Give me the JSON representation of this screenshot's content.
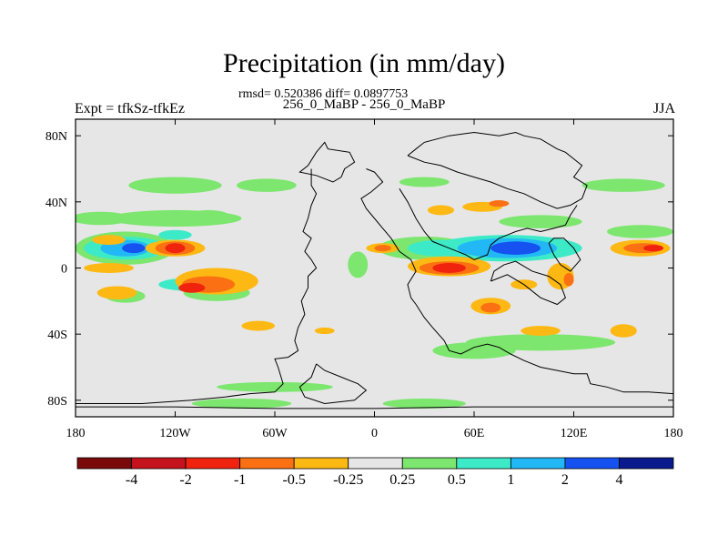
{
  "chart_data": {
    "type": "heatmap",
    "title": "Precipitation (in mm/day)",
    "stats_text": "rmsd= 0.520386 diff= 0.0897753",
    "subtitle": "256_0_MaBP - 256_0_MaBP",
    "left_label": "Expt = tfkSz-tfkEz",
    "right_label": "JJA",
    "x_range": [
      -180,
      180
    ],
    "y_range": [
      -90,
      90
    ],
    "x_ticks": [
      {
        "value": -180,
        "label": "180"
      },
      {
        "value": -120,
        "label": "120W"
      },
      {
        "value": -60,
        "label": "60W"
      },
      {
        "value": 0,
        "label": "0"
      },
      {
        "value": 60,
        "label": "60E"
      },
      {
        "value": 120,
        "label": "120E"
      },
      {
        "value": 180,
        "label": "180"
      }
    ],
    "y_ticks": [
      {
        "value": 80,
        "label": "80N"
      },
      {
        "value": 40,
        "label": "40N"
      },
      {
        "value": 0,
        "label": "0"
      },
      {
        "value": -40,
        "label": "40S"
      },
      {
        "value": -80,
        "label": "80S"
      }
    ],
    "background_color": "#e6e6e6",
    "colorbar": {
      "colors": [
        "#7a0a0a",
        "#c4131c",
        "#f0230e",
        "#fa7012",
        "#fdb813",
        "#e6e6e6",
        "#7ce66e",
        "#3deac8",
        "#22b8f5",
        "#1552f0",
        "#0a1a8c"
      ],
      "labels": [
        "-4",
        "-2",
        "-1",
        "-0.5",
        "-0.25",
        "0.25",
        "0.5",
        "1",
        "2",
        "4"
      ]
    },
    "features": [
      {
        "lon": -165,
        "lat": 30,
        "rlon": 18,
        "rlat": 4,
        "level": 6
      },
      {
        "lon": -120,
        "lat": 30,
        "rlon": 40,
        "rlat": 5,
        "level": 6
      },
      {
        "lon": -100,
        "lat": 32,
        "rlon": 12,
        "rlat": 3,
        "level": 6
      },
      {
        "lon": 100,
        "lat": 28,
        "rlon": 25,
        "rlat": 4,
        "level": 6
      },
      {
        "lon": 160,
        "lat": 22,
        "rlon": 20,
        "rlat": 4,
        "level": 6
      },
      {
        "lon": -150,
        "lat": 12,
        "rlon": 30,
        "rlat": 10,
        "level": 6
      },
      {
        "lon": -150,
        "lat": 12,
        "rlon": 25,
        "rlat": 7,
        "level": 7
      },
      {
        "lon": -150,
        "lat": 12,
        "rlon": 15,
        "rlat": 5,
        "level": 8
      },
      {
        "lon": -145,
        "lat": 12,
        "rlon": 7,
        "rlat": 3,
        "level": 9
      },
      {
        "lon": -120,
        "lat": 20,
        "rlon": 10,
        "rlat": 3,
        "level": 7
      },
      {
        "lon": -110,
        "lat": -10,
        "rlon": 20,
        "rlat": 4,
        "level": 7
      },
      {
        "lon": -95,
        "lat": -15,
        "rlon": 20,
        "rlat": 5,
        "level": 6
      },
      {
        "lon": 30,
        "lat": 12,
        "rlon": 28,
        "rlat": 7,
        "level": 6
      },
      {
        "lon": 40,
        "lat": 12,
        "rlon": 20,
        "rlat": 5,
        "level": 7
      },
      {
        "lon": 80,
        "lat": 12,
        "rlon": 45,
        "rlat": 8,
        "level": 7
      },
      {
        "lon": 80,
        "lat": 12,
        "rlon": 30,
        "rlat": 6,
        "level": 8
      },
      {
        "lon": 85,
        "lat": 12,
        "rlon": 15,
        "rlat": 4,
        "level": 9
      },
      {
        "lon": -10,
        "lat": 2,
        "rlon": 6,
        "rlat": 8,
        "level": 6
      },
      {
        "lon": -120,
        "lat": 50,
        "rlon": 28,
        "rlat": 5,
        "level": 6
      },
      {
        "lon": -65,
        "lat": 50,
        "rlon": 18,
        "rlat": 4,
        "level": 6
      },
      {
        "lon": 150,
        "lat": 50,
        "rlon": 25,
        "rlat": 4,
        "level": 6
      },
      {
        "lon": 30,
        "lat": 52,
        "rlon": 15,
        "rlat": 3,
        "level": 6
      },
      {
        "lon": 100,
        "lat": -45,
        "rlon": 45,
        "rlat": 5,
        "level": 6
      },
      {
        "lon": 60,
        "lat": -50,
        "rlon": 25,
        "rlat": 5,
        "level": 6
      },
      {
        "lon": -150,
        "lat": -17,
        "rlon": 12,
        "rlat": 4,
        "level": 6
      },
      {
        "lon": -60,
        "lat": -72,
        "rlon": 35,
        "rlat": 3,
        "level": 6
      },
      {
        "lon": -80,
        "lat": -82,
        "rlon": 30,
        "rlat": 3,
        "level": 6
      },
      {
        "lon": 30,
        "lat": -82,
        "rlon": 25,
        "rlat": 3,
        "level": 6
      },
      {
        "lon": -120,
        "lat": 12,
        "rlon": 18,
        "rlat": 5,
        "level": 4
      },
      {
        "lon": -120,
        "lat": 12,
        "rlon": 12,
        "rlat": 4,
        "level": 3
      },
      {
        "lon": -120,
        "lat": 12,
        "rlon": 6,
        "rlat": 3,
        "level": 2
      },
      {
        "lon": -95,
        "lat": -8,
        "rlon": 25,
        "rlat": 8,
        "level": 4
      },
      {
        "lon": -100,
        "lat": -10,
        "rlon": 16,
        "rlat": 5,
        "level": 3
      },
      {
        "lon": -110,
        "lat": -12,
        "rlon": 8,
        "rlat": 3,
        "level": 2
      },
      {
        "lon": -160,
        "lat": 0,
        "rlon": 15,
        "rlat": 3,
        "level": 4
      },
      {
        "lon": 45,
        "lat": 1,
        "rlon": 25,
        "rlat": 6,
        "level": 4
      },
      {
        "lon": 45,
        "lat": 0,
        "rlon": 18,
        "rlat": 4,
        "level": 3
      },
      {
        "lon": 45,
        "lat": 0,
        "rlon": 10,
        "rlat": 3,
        "level": 2
      },
      {
        "lon": 5,
        "lat": 12,
        "rlon": 10,
        "rlat": 3,
        "level": 4
      },
      {
        "lon": 5,
        "lat": 12,
        "rlon": 5,
        "rlat": 2,
        "level": 3
      },
      {
        "lon": 70,
        "lat": -23,
        "rlon": 12,
        "rlat": 5,
        "level": 4
      },
      {
        "lon": 70,
        "lat": -24,
        "rlon": 6,
        "rlat": 3,
        "level": 3
      },
      {
        "lon": 65,
        "lat": 37,
        "rlon": 12,
        "rlat": 3,
        "level": 4
      },
      {
        "lon": 75,
        "lat": 39,
        "rlon": 6,
        "rlat": 2,
        "level": 3
      },
      {
        "lon": 160,
        "lat": 12,
        "rlon": 18,
        "rlat": 5,
        "level": 4
      },
      {
        "lon": 162,
        "lat": 12,
        "rlon": 12,
        "rlat": 3,
        "level": 3
      },
      {
        "lon": 168,
        "lat": 12,
        "rlon": 6,
        "rlat": 2,
        "level": 2
      },
      {
        "lon": 112,
        "lat": -5,
        "rlon": 8,
        "rlat": 8,
        "level": 4
      },
      {
        "lon": 117,
        "lat": -7,
        "rlon": 3,
        "rlat": 4,
        "level": 3
      },
      {
        "lon": 90,
        "lat": -10,
        "rlon": 8,
        "rlat": 3,
        "level": 4
      },
      {
        "lon": 40,
        "lat": 35,
        "rlon": 8,
        "rlat": 3,
        "level": 4
      },
      {
        "lon": -160,
        "lat": 17,
        "rlon": 10,
        "rlat": 3,
        "level": 4
      },
      {
        "lon": -155,
        "lat": -15,
        "rlon": 12,
        "rlat": 4,
        "level": 4
      },
      {
        "lon": 150,
        "lat": -38,
        "rlon": 8,
        "rlat": 4,
        "level": 4
      },
      {
        "lon": 100,
        "lat": -38,
        "rlon": 12,
        "rlat": 3,
        "level": 4
      },
      {
        "lon": -30,
        "lat": -38,
        "rlon": 6,
        "rlat": 2,
        "level": 4
      },
      {
        "lon": -70,
        "lat": -35,
        "rlon": 10,
        "rlat": 3,
        "level": 4
      }
    ],
    "coastlines": [
      [
        [
          -20,
          55
        ],
        [
          -18,
          60
        ],
        [
          -12,
          64
        ],
        [
          -15,
          70
        ],
        [
          -28,
          72
        ],
        [
          -30,
          76
        ],
        [
          -35,
          70
        ],
        [
          -40,
          62
        ],
        [
          -45,
          58
        ],
        [
          -35,
          56
        ],
        [
          -25,
          52
        ],
        [
          -20,
          55
        ]
      ],
      [
        [
          -38,
          60
        ],
        [
          -38,
          50
        ],
        [
          -35,
          45
        ],
        [
          -38,
          38
        ],
        [
          -40,
          30
        ],
        [
          -43,
          22
        ],
        [
          -38,
          18
        ],
        [
          -42,
          10
        ],
        [
          -38,
          5
        ],
        [
          -35,
          0
        ],
        [
          -40,
          -5
        ],
        [
          -40,
          -12
        ],
        [
          -44,
          -20
        ],
        [
          -42,
          -28
        ],
        [
          -46,
          -36
        ],
        [
          -48,
          -44
        ],
        [
          -46,
          -50
        ],
        [
          -52,
          -54
        ],
        [
          -60,
          -55
        ],
        [
          -58,
          -60
        ],
        [
          -55,
          -70
        ],
        [
          -60,
          -75
        ],
        [
          -75,
          -76
        ],
        [
          -90,
          -78
        ],
        [
          -110,
          -80
        ],
        [
          -140,
          -82
        ],
        [
          -180,
          -82
        ]
      ],
      [
        [
          -5,
          60
        ],
        [
          0,
          58
        ],
        [
          5,
          52
        ],
        [
          -2,
          46
        ],
        [
          -8,
          42
        ],
        [
          -5,
          36
        ],
        [
          0,
          30
        ]
      ],
      [
        [
          20,
          68
        ],
        [
          25,
          72
        ],
        [
          30,
          76
        ],
        [
          45,
          80
        ],
        [
          60,
          82
        ],
        [
          75,
          80
        ],
        [
          85,
          82
        ],
        [
          90,
          80
        ],
        [
          100,
          78
        ],
        [
          110,
          72
        ],
        [
          115,
          70
        ],
        [
          125,
          62
        ],
        [
          120,
          55
        ],
        [
          128,
          50
        ],
        [
          125,
          42
        ],
        [
          118,
          38
        ],
        [
          110,
          36
        ],
        [
          100,
          40
        ],
        [
          90,
          45
        ],
        [
          80,
          48
        ],
        [
          70,
          52
        ],
        [
          60,
          55
        ],
        [
          50,
          58
        ],
        [
          40,
          62
        ],
        [
          30,
          64
        ],
        [
          20,
          68
        ]
      ],
      [
        [
          15,
          48
        ],
        [
          20,
          40
        ],
        [
          25,
          30
        ],
        [
          30,
          22
        ],
        [
          35,
          16
        ],
        [
          45,
          12
        ],
        [
          50,
          10
        ],
        [
          55,
          8
        ],
        [
          60,
          5
        ],
        [
          68,
          8
        ],
        [
          70,
          14
        ],
        [
          75,
          18
        ],
        [
          80,
          20
        ],
        [
          85,
          22
        ],
        [
          92,
          24
        ],
        [
          100,
          22
        ],
        [
          108,
          24
        ],
        [
          115,
          26
        ],
        [
          118,
          32
        ],
        [
          122,
          38
        ]
      ],
      [
        [
          0,
          30
        ],
        [
          5,
          24
        ],
        [
          10,
          18
        ],
        [
          15,
          10
        ],
        [
          22,
          5
        ],
        [
          25,
          -2
        ],
        [
          20,
          -10
        ],
        [
          22,
          -18
        ],
        [
          25,
          -22
        ],
        [
          30,
          -30
        ],
        [
          35,
          -36
        ],
        [
          42,
          -44
        ],
        [
          45,
          -50
        ],
        [
          52,
          -52
        ],
        [
          60,
          -48
        ],
        [
          68,
          -46
        ],
        [
          75,
          -48
        ],
        [
          82,
          -52
        ],
        [
          90,
          -56
        ],
        [
          100,
          -60
        ],
        [
          110,
          -62
        ],
        [
          120,
          -64
        ],
        [
          128,
          -64
        ],
        [
          130,
          -70
        ],
        [
          140,
          -72
        ],
        [
          150,
          -75
        ],
        [
          165,
          -75
        ],
        [
          180,
          -76
        ]
      ],
      [
        [
          70,
          -8
        ],
        [
          80,
          -4
        ],
        [
          90,
          -10
        ],
        [
          100,
          -18
        ],
        [
          110,
          -22
        ],
        [
          115,
          -18
        ],
        [
          112,
          -10
        ],
        [
          105,
          -5
        ],
        [
          95,
          -2
        ],
        [
          85,
          4
        ],
        [
          78,
          2
        ],
        [
          72,
          -2
        ],
        [
          70,
          -8
        ]
      ],
      [
        [
          105,
          15
        ],
        [
          108,
          8
        ],
        [
          112,
          2
        ],
        [
          118,
          -2
        ],
        [
          124,
          5
        ],
        [
          120,
          12
        ],
        [
          114,
          18
        ],
        [
          108,
          18
        ],
        [
          105,
          15
        ]
      ],
      [
        [
          -35,
          -58
        ],
        [
          -30,
          -62
        ],
        [
          -20,
          -66
        ],
        [
          -10,
          -70
        ],
        [
          -5,
          -74
        ],
        [
          -12,
          -80
        ],
        [
          -30,
          -82
        ],
        [
          -42,
          -78
        ],
        [
          -45,
          -72
        ],
        [
          -38,
          -66
        ],
        [
          -35,
          -58
        ]
      ],
      [
        [
          -180,
          -84
        ],
        [
          -120,
          -84
        ],
        [
          -60,
          -85
        ],
        [
          0,
          -85
        ],
        [
          60,
          -84
        ],
        [
          120,
          -84
        ],
        [
          180,
          -84
        ]
      ]
    ]
  }
}
